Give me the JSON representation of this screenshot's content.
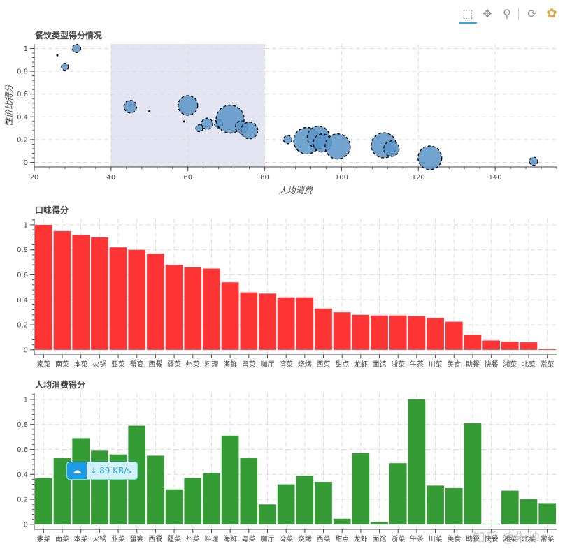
{
  "toolbar": {
    "tools": [
      {
        "name": "box-select-icon",
        "glyph": "⬚",
        "active": true
      },
      {
        "name": "pan-icon",
        "glyph": "✥",
        "active": false
      },
      {
        "name": "wheel-zoom-icon",
        "glyph": "⚲",
        "active": false
      },
      {
        "name": "reset-icon",
        "glyph": "⟳",
        "active": false
      },
      {
        "name": "bokeh-logo-icon",
        "glyph": "✿",
        "active": false
      }
    ]
  },
  "colors": {
    "bubble": "#5b94c8",
    "bar1": "#ff2a2a",
    "bar2": "#2a962a",
    "selection": "#e3e5f2",
    "grid": "#dcdcdc"
  },
  "overlay": {
    "speed": "89 KB/s",
    "watermark": "知乎 @朱帅"
  },
  "chart_data": [
    {
      "type": "scatter",
      "title": "餐饮类型得分情况",
      "xlabel": "人均消费",
      "ylabel": "性价比得分",
      "xlim": [
        20,
        156
      ],
      "ylim": [
        -0.04,
        1.04
      ],
      "xticks": [
        20,
        40,
        60,
        80,
        100,
        120,
        140
      ],
      "yticks": [
        0,
        0.2,
        0.4,
        0.6,
        0.8,
        1
      ],
      "selection_range_x": [
        40,
        80
      ],
      "points": [
        {
          "x": 26,
          "y": 0.94,
          "r": 1.5
        },
        {
          "x": 31,
          "y": 1.0,
          "r": 6
        },
        {
          "x": 28,
          "y": 0.84,
          "r": 5
        },
        {
          "x": 45,
          "y": 0.49,
          "r": 9
        },
        {
          "x": 50,
          "y": 0.45,
          "r": 1.5
        },
        {
          "x": 59,
          "y": 0.36,
          "r": 1.5
        },
        {
          "x": 60,
          "y": 0.5,
          "r": 14
        },
        {
          "x": 65,
          "y": 0.34,
          "r": 8
        },
        {
          "x": 63,
          "y": 0.3,
          "r": 5
        },
        {
          "x": 68,
          "y": 0.34,
          "r": 6
        },
        {
          "x": 71,
          "y": 0.38,
          "r": 20
        },
        {
          "x": 74,
          "y": 0.31,
          "r": 9
        },
        {
          "x": 76,
          "y": 0.28,
          "r": 12
        },
        {
          "x": 86,
          "y": 0.2,
          "r": 6
        },
        {
          "x": 91,
          "y": 0.19,
          "r": 19
        },
        {
          "x": 94,
          "y": 0.22,
          "r": 16
        },
        {
          "x": 95,
          "y": 0.17,
          "r": 13
        },
        {
          "x": 99,
          "y": 0.14,
          "r": 18
        },
        {
          "x": 111,
          "y": 0.15,
          "r": 18
        },
        {
          "x": 113,
          "y": 0.12,
          "r": 11
        },
        {
          "x": 123,
          "y": 0.04,
          "r": 17
        },
        {
          "x": 150,
          "y": 0.01,
          "r": 6
        }
      ]
    },
    {
      "type": "bar",
      "title": "口味得分",
      "ylim": [
        -0.04,
        1.05
      ],
      "yticks": [
        0,
        0.2,
        0.4,
        0.6,
        0.8,
        1
      ],
      "categories": [
        "素菜",
        "南菜",
        "本菜",
        "火锅",
        "亚菜",
        "蟹宴",
        "西餐",
        "疆菜",
        "州菜",
        "料理",
        "海鲜",
        "粤菜",
        "咖厅",
        "湾菜",
        "烧烤",
        "西菜",
        "甜点",
        "龙虾",
        "面馆",
        "浙菜",
        "午茶",
        "川菜",
        "美食",
        "助餐",
        "快餐",
        "湘菜",
        "北菜",
        "常菜"
      ],
      "values": [
        1.0,
        0.95,
        0.92,
        0.9,
        0.82,
        0.8,
        0.77,
        0.68,
        0.66,
        0.65,
        0.54,
        0.46,
        0.45,
        0.42,
        0.42,
        0.33,
        0.3,
        0.28,
        0.275,
        0.275,
        0.27,
        0.255,
        0.225,
        0.12,
        0.075,
        0.065,
        0.06,
        0.005
      ]
    },
    {
      "type": "bar",
      "title": "人均消费得分",
      "ylim": [
        -0.04,
        1.05
      ],
      "yticks": [
        0,
        0.2,
        0.4,
        0.6,
        0.8,
        1
      ],
      "categories": [
        "素菜",
        "南菜",
        "本菜",
        "火锅",
        "亚菜",
        "蟹宴",
        "西餐",
        "疆菜",
        "州菜",
        "料理",
        "海鲜",
        "粤菜",
        "咖厅",
        "湾菜",
        "烧烤",
        "西菜",
        "甜点",
        "龙虾",
        "面馆",
        "浙菜",
        "午茶",
        "川菜",
        "美食",
        "助餐",
        "快餐",
        "湘菜",
        "北菜",
        "常菜"
      ],
      "values": [
        0.37,
        0.53,
        0.69,
        0.59,
        0.56,
        0.79,
        0.55,
        0.28,
        0.37,
        0.41,
        0.71,
        0.53,
        0.16,
        0.32,
        0.39,
        0.34,
        0.045,
        0.57,
        0.02,
        0.49,
        1.0,
        0.31,
        0.29,
        0.81,
        0.005,
        0.27,
        0.2,
        0.17
      ]
    }
  ]
}
